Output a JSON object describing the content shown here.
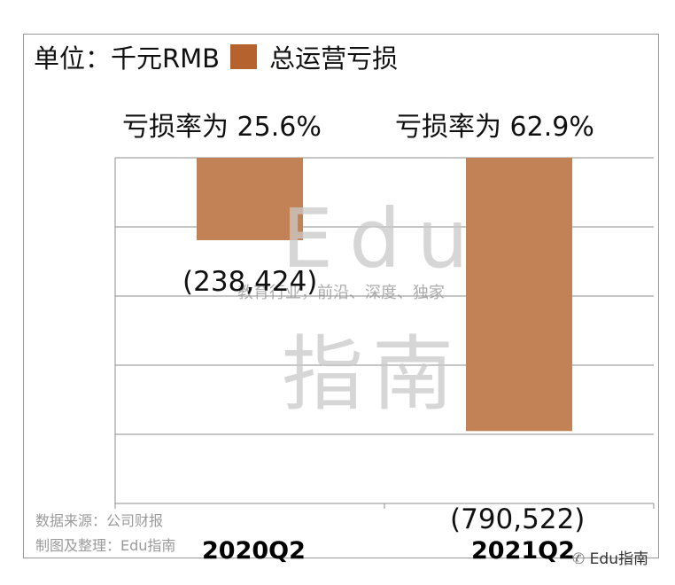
{
  "unit_label": "单位：千元RMB",
  "legend": {
    "label": "总运营亏损",
    "color": "#b5622e"
  },
  "rate_labels": [
    "亏损率为 25.6%",
    "亏损率为 62.9%"
  ],
  "watermark": {
    "brand": "Edu",
    "tagline": "教育行业，前沿、深度、独家",
    "name": "指南"
  },
  "source_lines": [
    "数据来源：公司财报",
    "制图及整理：Edu指南"
  ],
  "wechat_mark": "Edu指南",
  "chart_data": {
    "type": "bar",
    "categories": [
      "2020Q2",
      "2021Q2"
    ],
    "series": [
      {
        "name": "总运营亏损",
        "values": [
          -238424,
          -790522
        ]
      }
    ],
    "data_labels": [
      "(238,424)",
      "(790,522)"
    ],
    "ylim": [
      -1000000,
      0
    ],
    "bar_color": "#c28256",
    "grid": true
  }
}
